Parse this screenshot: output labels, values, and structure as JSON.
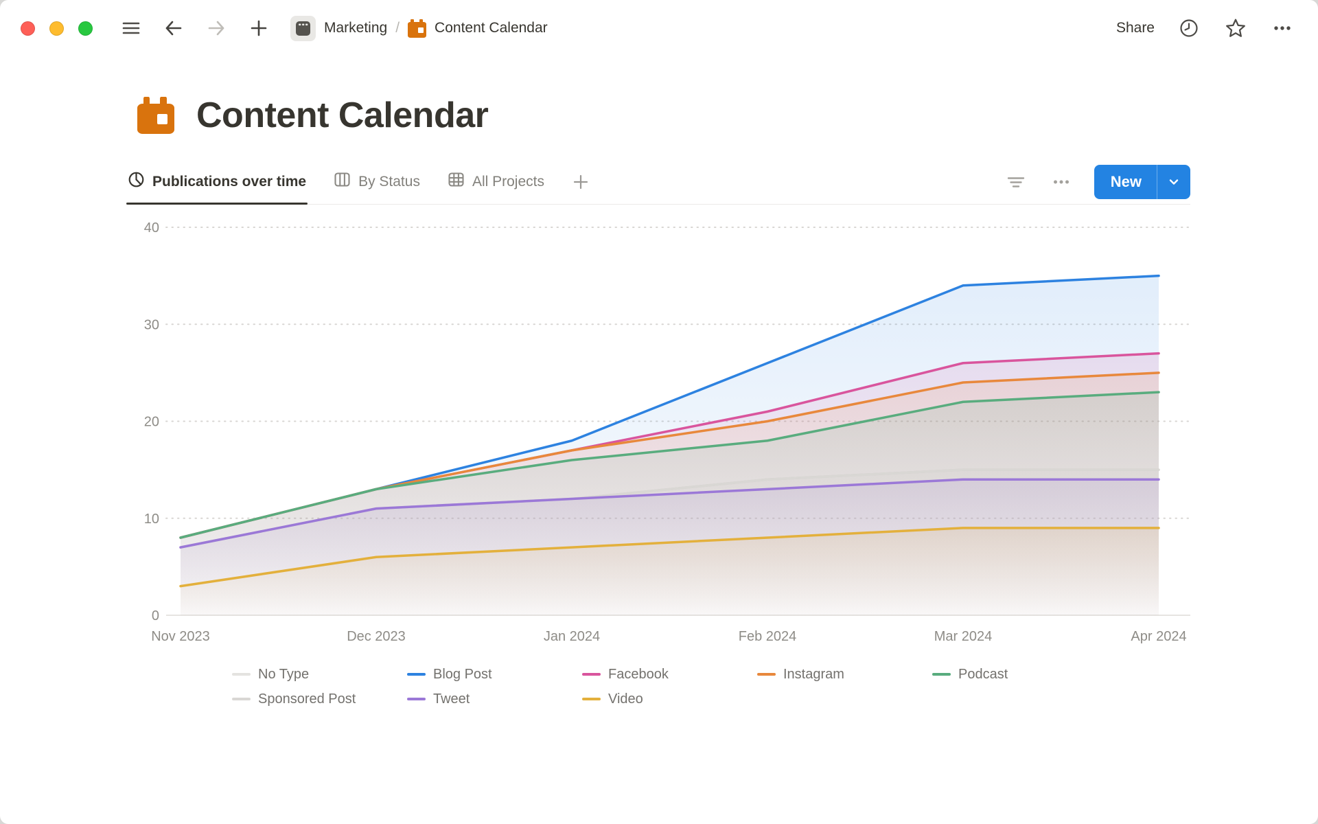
{
  "topbar": {
    "breadcrumb": {
      "workspace": "Marketing",
      "separator": "/",
      "page": "Content Calendar"
    },
    "share_label": "Share"
  },
  "page": {
    "title": "Content Calendar",
    "icon": "orange-calendar"
  },
  "view_tabs": [
    {
      "label": "Publications over time",
      "icon": "pie-chart-icon",
      "active": true
    },
    {
      "label": "By Status",
      "icon": "board-columns-icon",
      "active": false
    },
    {
      "label": "All Projects",
      "icon": "table-icon",
      "active": false
    }
  ],
  "toolbar": {
    "new_button_label": "New"
  },
  "chart_data": {
    "type": "area",
    "title": "Publications over time",
    "x": [
      "Nov 2023",
      "Dec 2023",
      "Jan 2024",
      "Feb 2024",
      "Mar 2024",
      "Apr 2024"
    ],
    "xlabel": "",
    "ylabel": "",
    "ylim": [
      0,
      40
    ],
    "yticks": [
      0,
      10,
      20,
      30,
      40
    ],
    "grid": "horizontal-dotted",
    "legend_position": "bottom",
    "series": [
      {
        "name": "No Type",
        "color": "#e4e3e0",
        "values": [
          7,
          11,
          12,
          14,
          15,
          15
        ]
      },
      {
        "name": "Blog Post",
        "color": "#2d82e0",
        "values": [
          8,
          13,
          18,
          26,
          34,
          35
        ]
      },
      {
        "name": "Facebook",
        "color": "#d9559d",
        "values": [
          8,
          13,
          17,
          21,
          26,
          27
        ]
      },
      {
        "name": "Instagram",
        "color": "#e8883c",
        "values": [
          8,
          13,
          17,
          20,
          24,
          25
        ]
      },
      {
        "name": "Podcast",
        "color": "#59ac7e",
        "values": [
          8,
          13,
          16,
          18,
          22,
          23
        ]
      },
      {
        "name": "Sponsored Post",
        "color": "#d9d7d4",
        "values": [
          7,
          11,
          12,
          14,
          15,
          15
        ]
      },
      {
        "name": "Tweet",
        "color": "#9b78d7",
        "values": [
          7,
          11,
          12,
          13,
          14,
          14
        ]
      },
      {
        "name": "Video",
        "color": "#e3b03c",
        "values": [
          3,
          6,
          7,
          8,
          9,
          9
        ]
      }
    ]
  }
}
